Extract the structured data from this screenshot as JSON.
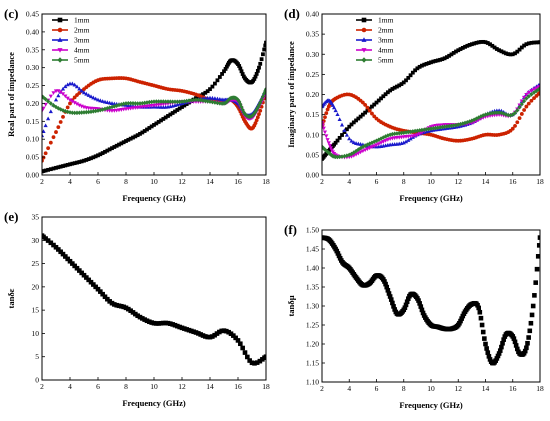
{
  "chart_data": [
    {
      "panel": "c",
      "type": "line",
      "xlabel": "Frequency (GHz)",
      "ylabel": "Real part of impedance",
      "xlim": [
        2,
        18
      ],
      "ylim": [
        0,
        0.45
      ],
      "xticks": [
        2,
        4,
        6,
        8,
        10,
        12,
        14,
        16,
        18
      ],
      "yticks": [
        0.0,
        0.05,
        0.1,
        0.15,
        0.2,
        0.25,
        0.3,
        0.35,
        0.4,
        0.45
      ],
      "ytick_decimals": 2,
      "legend_position": "top-left",
      "x": [
        2,
        3,
        4,
        5,
        6,
        7,
        8,
        9,
        10,
        11,
        12,
        13,
        14,
        15,
        15.5,
        16,
        16.5,
        17,
        17.5,
        18
      ],
      "series": [
        {
          "name": "1mm",
          "color": "#000000",
          "marker": "square",
          "values": [
            0.01,
            0.02,
            0.03,
            0.04,
            0.055,
            0.075,
            0.095,
            0.115,
            0.14,
            0.165,
            0.19,
            0.215,
            0.24,
            0.29,
            0.32,
            0.31,
            0.27,
            0.26,
            0.3,
            0.37
          ]
        },
        {
          "name": "2mm",
          "color": "#cc2200",
          "marker": "circle",
          "values": [
            0.04,
            0.12,
            0.2,
            0.24,
            0.265,
            0.27,
            0.27,
            0.26,
            0.25,
            0.24,
            0.235,
            0.225,
            0.21,
            0.205,
            0.21,
            0.19,
            0.15,
            0.13,
            0.17,
            0.23
          ]
        },
        {
          "name": "3mm",
          "color": "#1a1acc",
          "marker": "triangle",
          "values": [
            0.11,
            0.21,
            0.255,
            0.23,
            0.21,
            0.2,
            0.195,
            0.19,
            0.19,
            0.19,
            0.2,
            0.21,
            0.215,
            0.21,
            0.21,
            0.2,
            0.17,
            0.17,
            0.2,
            0.24
          ]
        },
        {
          "name": "4mm",
          "color": "#cc00cc",
          "marker": "triangle-down",
          "values": [
            0.18,
            0.235,
            0.21,
            0.19,
            0.185,
            0.18,
            0.185,
            0.19,
            0.195,
            0.2,
            0.205,
            0.205,
            0.205,
            0.2,
            0.21,
            0.205,
            0.165,
            0.16,
            0.19,
            0.23
          ]
        },
        {
          "name": "5mm",
          "color": "#2e7d32",
          "marker": "diamond",
          "values": [
            0.22,
            0.19,
            0.175,
            0.175,
            0.18,
            0.19,
            0.2,
            0.2,
            0.205,
            0.205,
            0.205,
            0.21,
            0.205,
            0.2,
            0.215,
            0.21,
            0.17,
            0.165,
            0.195,
            0.24
          ]
        }
      ]
    },
    {
      "panel": "d",
      "type": "line",
      "xlabel": "Frequency (GHz)",
      "ylabel": "Imaginary part of impedance",
      "xlim": [
        2,
        18
      ],
      "ylim": [
        0,
        0.4
      ],
      "xticks": [
        2,
        4,
        6,
        8,
        10,
        12,
        14,
        16,
        18
      ],
      "yticks": [
        0.0,
        0.05,
        0.1,
        0.15,
        0.2,
        0.25,
        0.3,
        0.35,
        0.4
      ],
      "ytick_decimals": 2,
      "legend_position": "top-center",
      "x": [
        2,
        2.5,
        3,
        4,
        5,
        6,
        7,
        8,
        9,
        10,
        11,
        12,
        13,
        14,
        15,
        16,
        17,
        18
      ],
      "series": [
        {
          "name": "1mm",
          "color": "#000000",
          "marker": "square",
          "values": [
            0.04,
            0.06,
            0.08,
            0.12,
            0.15,
            0.18,
            0.21,
            0.23,
            0.265,
            0.28,
            0.29,
            0.31,
            0.325,
            0.33,
            0.31,
            0.3,
            0.325,
            0.33
          ]
        },
        {
          "name": "2mm",
          "color": "#cc2200",
          "marker": "circle",
          "values": [
            0.12,
            0.17,
            0.19,
            0.2,
            0.18,
            0.14,
            0.12,
            0.11,
            0.105,
            0.1,
            0.09,
            0.085,
            0.09,
            0.1,
            0.1,
            0.115,
            0.17,
            0.205
          ]
        },
        {
          "name": "3mm",
          "color": "#1a1acc",
          "marker": "triangle",
          "values": [
            0.17,
            0.185,
            0.16,
            0.09,
            0.075,
            0.07,
            0.075,
            0.08,
            0.1,
            0.11,
            0.115,
            0.12,
            0.13,
            0.15,
            0.16,
            0.15,
            0.2,
            0.225
          ]
        },
        {
          "name": "4mm",
          "color": "#cc00cc",
          "marker": "triangle-down",
          "values": [
            0.13,
            0.08,
            0.05,
            0.045,
            0.06,
            0.075,
            0.09,
            0.095,
            0.1,
            0.12,
            0.125,
            0.125,
            0.13,
            0.145,
            0.15,
            0.15,
            0.2,
            0.22
          ]
        },
        {
          "name": "5mm",
          "color": "#2e7d32",
          "marker": "diamond",
          "values": [
            0.07,
            0.055,
            0.045,
            0.05,
            0.07,
            0.085,
            0.1,
            0.105,
            0.11,
            0.115,
            0.12,
            0.125,
            0.135,
            0.15,
            0.155,
            0.15,
            0.19,
            0.215
          ]
        }
      ]
    },
    {
      "panel": "e",
      "type": "line",
      "xlabel": "Frequency (GHz)",
      "ylabel": "tanδε",
      "xlim": [
        2,
        18
      ],
      "ylim": [
        0,
        35
      ],
      "xticks": [
        2,
        4,
        6,
        8,
        10,
        12,
        14,
        16,
        18
      ],
      "yticks": [
        0,
        5,
        10,
        15,
        20,
        25,
        30,
        35
      ],
      "ytick_decimals": 0,
      "x": [
        2,
        3,
        4,
        5,
        6,
        7,
        8,
        9,
        10,
        11,
        12,
        13,
        14,
        15,
        16,
        17,
        18
      ],
      "series": [
        {
          "color": "#000000",
          "marker": "square",
          "values": [
            31,
            28.5,
            25.5,
            22.5,
            19.5,
            16.5,
            15.5,
            13.5,
            12.2,
            12.2,
            11.2,
            10.2,
            9.2,
            10.6,
            8.5,
            3.7,
            5.0
          ]
        }
      ]
    },
    {
      "panel": "f",
      "type": "line",
      "xlabel": "Frequency (GHz)",
      "ylabel": "tanδμ",
      "xlim": [
        2,
        18
      ],
      "ylim": [
        1.1,
        1.5
      ],
      "xticks": [
        2,
        4,
        6,
        8,
        10,
        12,
        14,
        16,
        18
      ],
      "yticks": [
        1.1,
        1.15,
        1.2,
        1.25,
        1.3,
        1.35,
        1.4,
        1.45,
        1.5
      ],
      "ytick_decimals": 2,
      "x": [
        2,
        2.5,
        3,
        3.5,
        4,
        4.5,
        5,
        5.5,
        6,
        6.5,
        7,
        7.5,
        8,
        8.5,
        9,
        9.5,
        10,
        10.5,
        11,
        11.5,
        12,
        12.5,
        13,
        13.5,
        14,
        14.5,
        15,
        15.5,
        16,
        16.5,
        17,
        17.5,
        18
      ],
      "series": [
        {
          "color": "#000000",
          "marker": "square",
          "values": [
            1.48,
            1.475,
            1.45,
            1.415,
            1.4,
            1.375,
            1.355,
            1.36,
            1.38,
            1.37,
            1.325,
            1.28,
            1.29,
            1.33,
            1.32,
            1.275,
            1.25,
            1.245,
            1.24,
            1.24,
            1.25,
            1.285,
            1.305,
            1.295,
            1.2,
            1.15,
            1.175,
            1.225,
            1.22,
            1.175,
            1.19,
            1.3,
            1.48
          ]
        }
      ]
    }
  ]
}
